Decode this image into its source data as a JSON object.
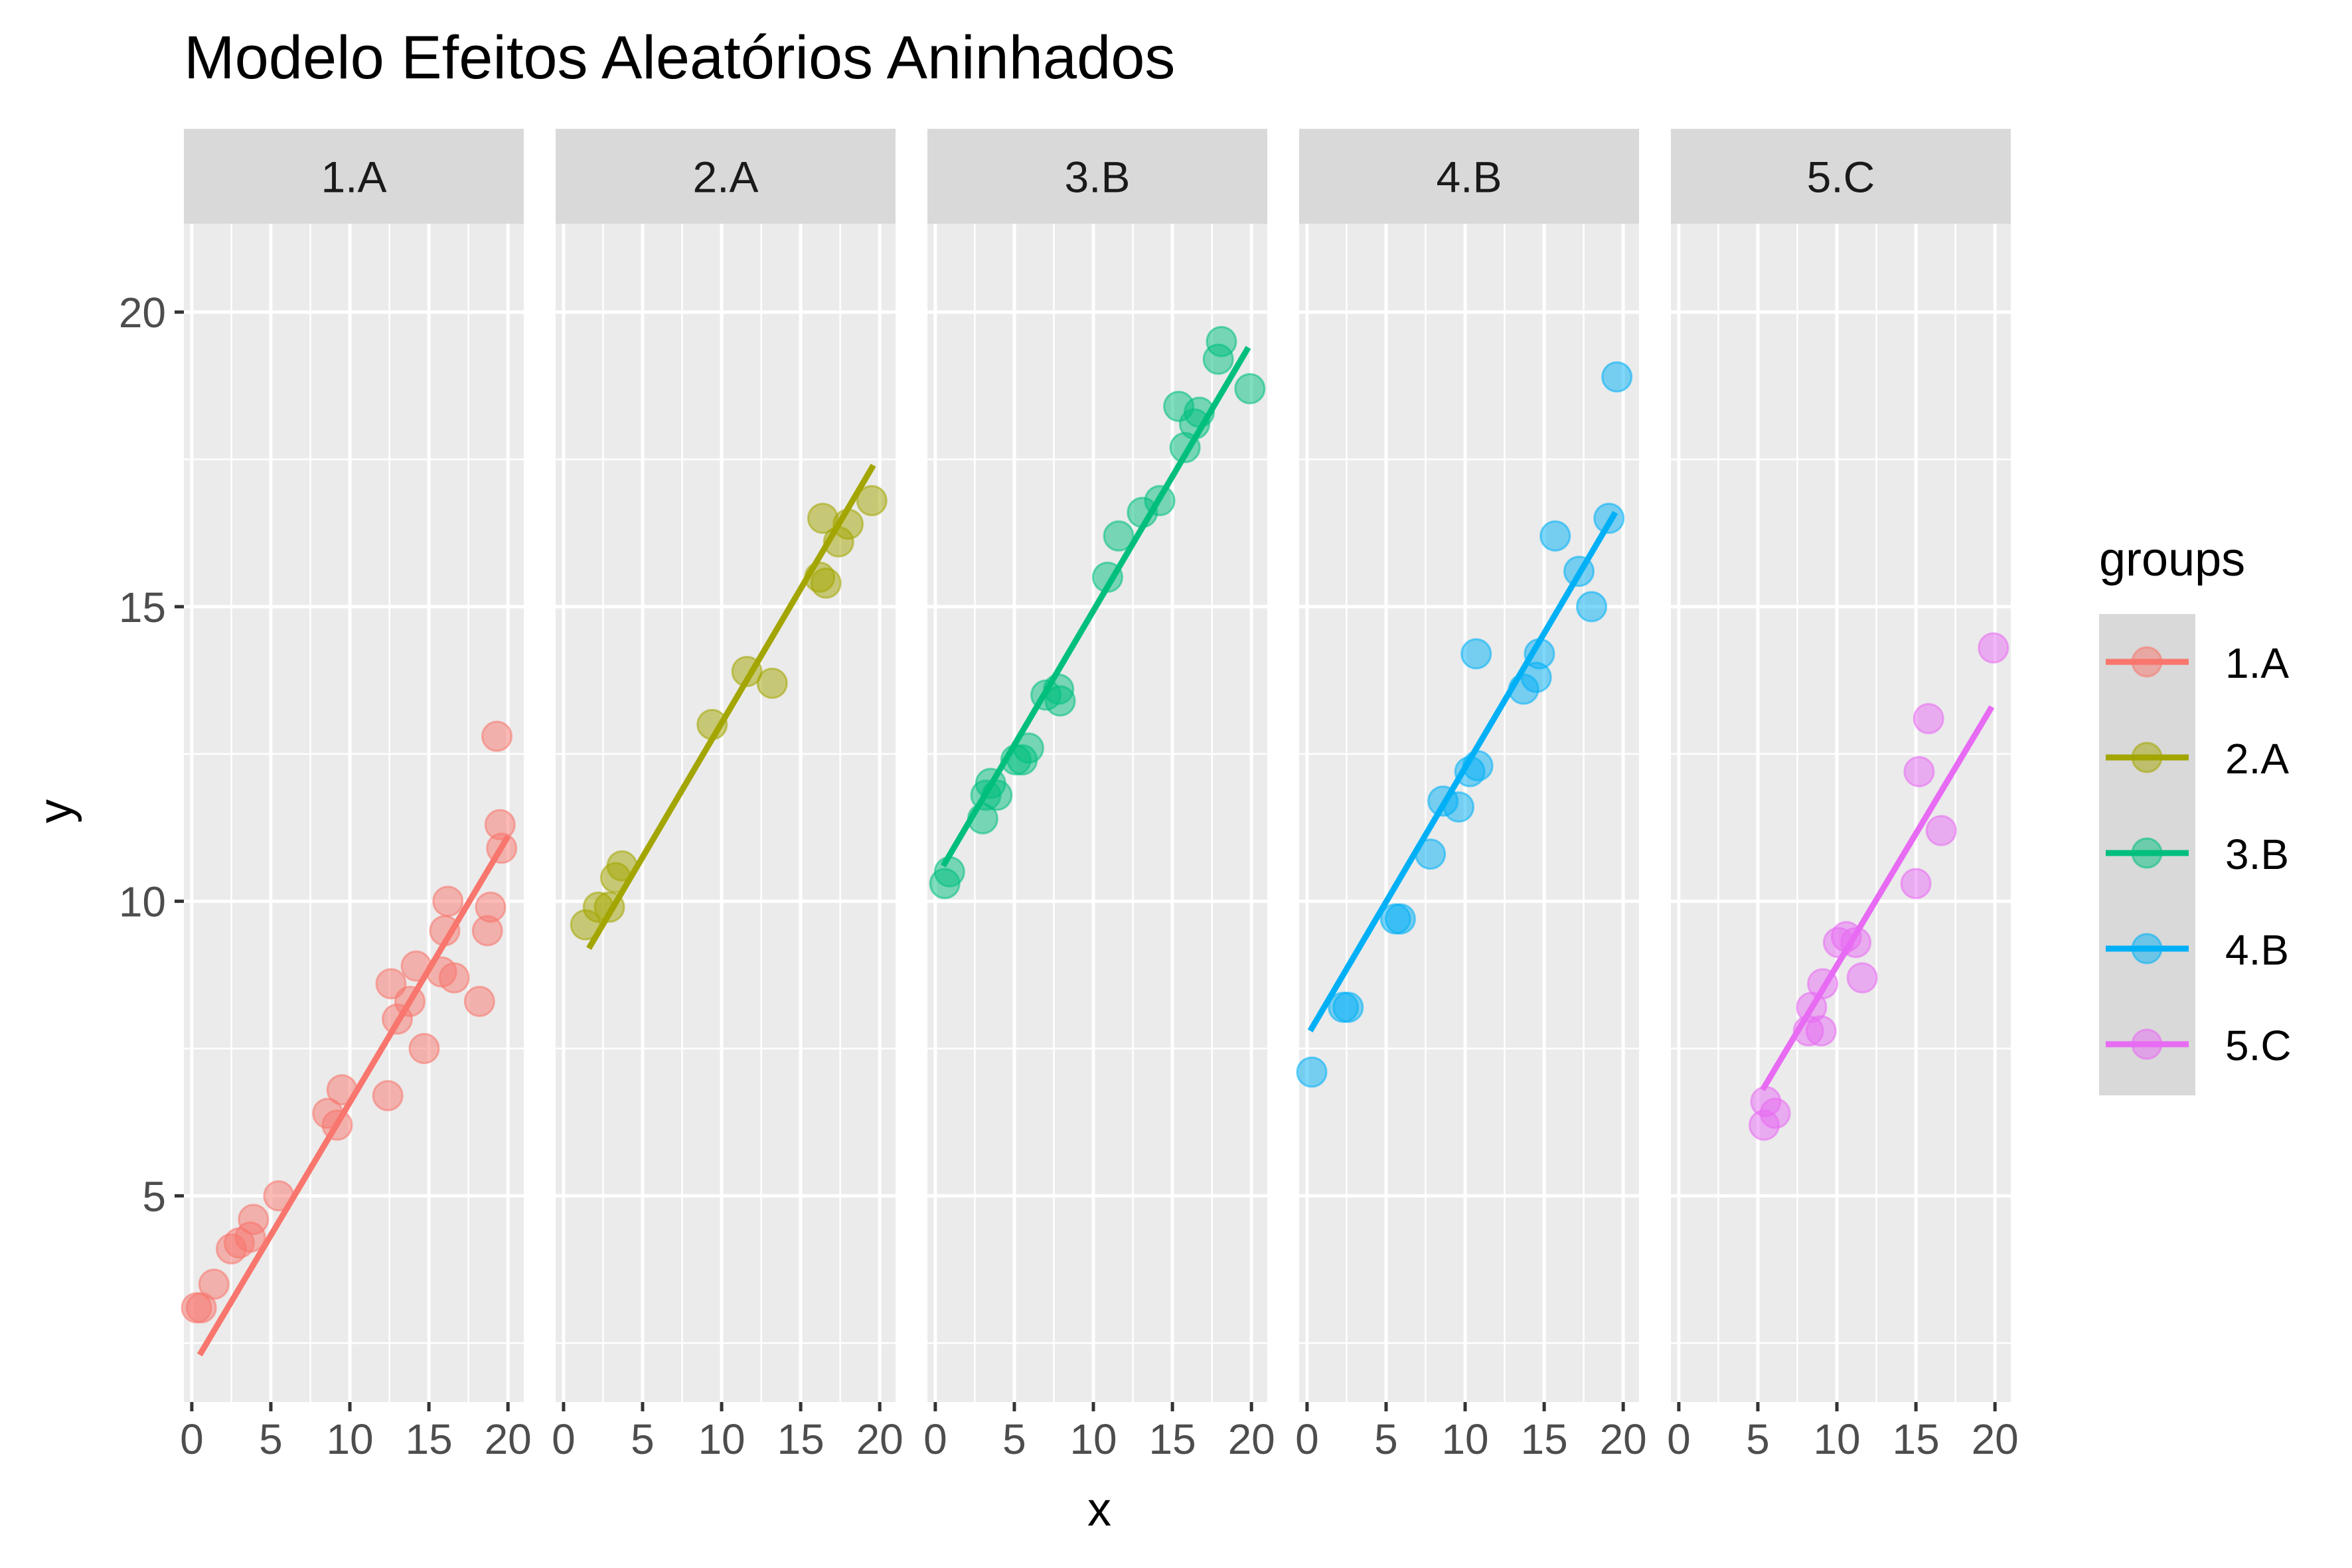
{
  "chart_data": {
    "type": "scatter",
    "title": "Modelo Efeitos Aleatórios Aninhados",
    "xlabel": "x",
    "ylabel": "y",
    "xlim": [
      -0.5,
      21
    ],
    "ylim": [
      1.5,
      21.5
    ],
    "x_ticks": [
      0,
      5,
      10,
      15,
      20
    ],
    "y_ticks": [
      5,
      10,
      15,
      20
    ],
    "grid": true,
    "legend": {
      "title": "groups",
      "position": "right"
    },
    "panels": [
      {
        "name": "1.A",
        "color": "#F8766D",
        "points": [
          [
            0.3,
            3.1
          ],
          [
            0.6,
            3.1
          ],
          [
            1.4,
            3.5
          ],
          [
            2.5,
            4.1
          ],
          [
            3.0,
            4.2
          ],
          [
            3.7,
            4.3
          ],
          [
            3.9,
            4.6
          ],
          [
            5.5,
            5.0
          ],
          [
            8.6,
            6.4
          ],
          [
            9.2,
            6.2
          ],
          [
            9.5,
            6.8
          ],
          [
            12.4,
            6.7
          ],
          [
            12.6,
            8.6
          ],
          [
            13.0,
            8.0
          ],
          [
            13.8,
            8.3
          ],
          [
            14.2,
            8.9
          ],
          [
            14.7,
            7.5
          ],
          [
            15.8,
            8.8
          ],
          [
            16.0,
            9.5
          ],
          [
            16.2,
            10.0
          ],
          [
            16.6,
            8.7
          ],
          [
            18.2,
            8.3
          ],
          [
            18.7,
            9.5
          ],
          [
            18.9,
            9.9
          ],
          [
            19.3,
            12.8
          ],
          [
            19.5,
            11.3
          ],
          [
            19.6,
            10.9
          ]
        ],
        "line": [
          [
            0.5,
            2.3
          ],
          [
            20.0,
            11.1
          ]
        ]
      },
      {
        "name": "2.A",
        "color": "#A3A500",
        "points": [
          [
            1.4,
            9.6
          ],
          [
            2.2,
            9.9
          ],
          [
            2.9,
            9.9
          ],
          [
            3.3,
            10.4
          ],
          [
            3.7,
            10.6
          ],
          [
            9.4,
            13.0
          ],
          [
            11.6,
            13.9
          ],
          [
            13.2,
            13.7
          ],
          [
            16.2,
            15.5
          ],
          [
            16.4,
            16.5
          ],
          [
            16.6,
            15.4
          ],
          [
            17.4,
            16.1
          ],
          [
            18.0,
            16.4
          ],
          [
            19.5,
            16.8
          ]
        ],
        "line": [
          [
            1.6,
            9.2
          ],
          [
            19.6,
            17.4
          ]
        ]
      },
      {
        "name": "3.B",
        "color": "#00BF7D",
        "points": [
          [
            0.6,
            10.3
          ],
          [
            0.9,
            10.5
          ],
          [
            3.0,
            11.4
          ],
          [
            3.2,
            11.8
          ],
          [
            3.5,
            12.0
          ],
          [
            3.9,
            11.8
          ],
          [
            5.1,
            12.4
          ],
          [
            5.5,
            12.4
          ],
          [
            5.9,
            12.6
          ],
          [
            7.0,
            13.5
          ],
          [
            7.8,
            13.6
          ],
          [
            7.9,
            13.4
          ],
          [
            10.9,
            15.5
          ],
          [
            11.6,
            16.2
          ],
          [
            13.1,
            16.6
          ],
          [
            14.2,
            16.8
          ],
          [
            15.4,
            18.4
          ],
          [
            15.8,
            17.7
          ],
          [
            16.4,
            18.1
          ],
          [
            16.7,
            18.3
          ],
          [
            17.9,
            19.2
          ],
          [
            18.1,
            19.5
          ],
          [
            19.9,
            18.7
          ]
        ],
        "line": [
          [
            0.5,
            10.6
          ],
          [
            19.8,
            19.4
          ]
        ]
      },
      {
        "name": "4.B",
        "color": "#00B0F6",
        "points": [
          [
            0.3,
            7.1
          ],
          [
            2.3,
            8.2
          ],
          [
            2.6,
            8.2
          ],
          [
            5.6,
            9.7
          ],
          [
            5.9,
            9.7
          ],
          [
            7.8,
            10.8
          ],
          [
            8.6,
            11.7
          ],
          [
            9.6,
            11.6
          ],
          [
            10.3,
            12.2
          ],
          [
            10.8,
            12.3
          ],
          [
            10.7,
            14.2
          ],
          [
            13.7,
            13.6
          ],
          [
            14.5,
            13.8
          ],
          [
            14.7,
            14.2
          ],
          [
            15.7,
            16.2
          ],
          [
            17.2,
            15.6
          ],
          [
            18.0,
            15.0
          ],
          [
            19.1,
            16.5
          ],
          [
            19.6,
            18.9
          ]
        ],
        "line": [
          [
            0.2,
            7.8
          ],
          [
            19.5,
            16.6
          ]
        ]
      },
      {
        "name": "5.C",
        "color": "#E76BF3",
        "points": [
          [
            5.4,
            6.2
          ],
          [
            5.5,
            6.6
          ],
          [
            6.1,
            6.4
          ],
          [
            8.2,
            7.8
          ],
          [
            8.4,
            8.2
          ],
          [
            9.0,
            7.8
          ],
          [
            9.1,
            8.6
          ],
          [
            10.1,
            9.3
          ],
          [
            10.6,
            9.4
          ],
          [
            11.2,
            9.3
          ],
          [
            11.6,
            8.7
          ],
          [
            15.0,
            10.3
          ],
          [
            15.2,
            12.2
          ],
          [
            15.8,
            13.1
          ],
          [
            16.6,
            11.2
          ],
          [
            19.9,
            14.3
          ]
        ],
        "line": [
          [
            5.3,
            6.8
          ],
          [
            19.8,
            13.3
          ]
        ]
      }
    ]
  }
}
